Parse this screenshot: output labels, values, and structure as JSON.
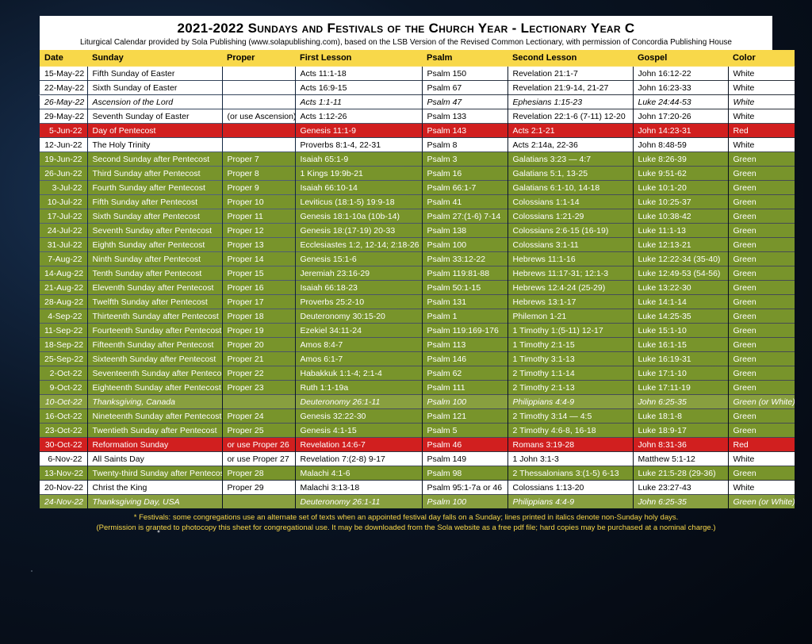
{
  "title": "2021-2022 Sundays and Festivals of the Church Year - Lectionary Year C",
  "subtitle": "Liturgical Calendar provided by Sola Publishing (www.solapublishing.com), based on the LSB Version of the Revised Common Lectionary, with permission of Concordia Publishing House",
  "columns": [
    "Date",
    "Sunday",
    "Proper",
    "First Lesson",
    "Psalm",
    "Second Lesson",
    "Gospel",
    "Color"
  ],
  "rows": [
    {
      "cls": "white",
      "c": [
        "15-May-22",
        "Fifth Sunday of Easter",
        "",
        "Acts 11:1-18",
        "Psalm 150",
        "Revelation 21:1-7",
        "John 16:12-22",
        "White"
      ]
    },
    {
      "cls": "white",
      "c": [
        "22-May-22",
        "Sixth Sunday of Easter",
        "",
        "Acts 16:9-15",
        "Psalm 67",
        "Revelation 21:9-14, 21-27",
        "John 16:23-33",
        "White"
      ]
    },
    {
      "cls": "white",
      "it": true,
      "c": [
        "26-May-22",
        "Ascension of the Lord",
        "",
        "Acts 1:1-11",
        "Psalm 47",
        "Ephesians 1:15-23",
        "Luke 24:44-53",
        "White"
      ]
    },
    {
      "cls": "white",
      "c": [
        "29-May-22",
        "Seventh Sunday of Easter",
        "(or use Ascension)",
        "Acts 1:12-26",
        "Psalm 133",
        "Revelation 22:1-6 (7-11) 12-20",
        "John 17:20-26",
        "White"
      ]
    },
    {
      "cls": "red",
      "c": [
        "5-Jun-22",
        "Day of Pentecost",
        "",
        "Genesis 11:1-9",
        "Psalm 143",
        "Acts 2:1-21",
        "John 14:23-31",
        "Red"
      ]
    },
    {
      "cls": "white",
      "c": [
        "12-Jun-22",
        "The Holy Trinity",
        "",
        "Proverbs 8:1-4, 22-31",
        "Psalm 8",
        "Acts 2:14a, 22-36",
        "John 8:48-59",
        "White"
      ]
    },
    {
      "cls": "green",
      "c": [
        "19-Jun-22",
        "Second Sunday after Pentecost",
        "Proper 7",
        "Isaiah 65:1-9",
        "Psalm 3",
        "Galatians 3:23 — 4:7",
        "Luke 8:26-39",
        "Green"
      ]
    },
    {
      "cls": "green",
      "c": [
        "26-Jun-22",
        "Third Sunday after Pentecost",
        "Proper 8",
        "1 Kings 19:9b-21",
        "Psalm 16",
        "Galatians 5:1, 13-25",
        "Luke 9:51-62",
        "Green"
      ]
    },
    {
      "cls": "green",
      "c": [
        "3-Jul-22",
        "Fourth Sunday after Pentecost",
        "Proper 9",
        "Isaiah 66:10-14",
        "Psalm 66:1-7",
        "Galatians 6:1-10, 14-18",
        "Luke 10:1-20",
        "Green"
      ]
    },
    {
      "cls": "green",
      "c": [
        "10-Jul-22",
        "Fifth Sunday after Pentecost",
        "Proper 10",
        "Leviticus (18:1-5) 19:9-18",
        "Psalm 41",
        "Colossians 1:1-14",
        "Luke 10:25-37",
        "Green"
      ]
    },
    {
      "cls": "green",
      "c": [
        "17-Jul-22",
        "Sixth Sunday after Pentecost",
        "Proper 11",
        "Genesis 18:1-10a (10b-14)",
        "Psalm 27:(1-6) 7-14",
        "Colossians 1:21-29",
        "Luke 10:38-42",
        "Green"
      ]
    },
    {
      "cls": "green",
      "c": [
        "24-Jul-22",
        "Seventh Sunday after Pentecost",
        "Proper 12",
        "Genesis 18:(17-19) 20-33",
        "Psalm 138",
        "Colossians 2:6-15 (16-19)",
        "Luke 11:1-13",
        "Green"
      ]
    },
    {
      "cls": "green",
      "c": [
        "31-Jul-22",
        "Eighth Sunday after Pentecost",
        "Proper 13",
        "Ecclesiastes 1:2, 12-14; 2:18-26",
        "Psalm 100",
        "Colossians 3:1-11",
        "Luke 12:13-21",
        "Green"
      ]
    },
    {
      "cls": "green",
      "c": [
        "7-Aug-22",
        "Ninth Sunday after Pentecost",
        "Proper 14",
        "Genesis 15:1-6",
        "Psalm 33:12-22",
        "Hebrews 11:1-16",
        "Luke 12:22-34 (35-40)",
        "Green"
      ]
    },
    {
      "cls": "green",
      "c": [
        "14-Aug-22",
        "Tenth Sunday after Pentecost",
        "Proper 15",
        "Jeremiah 23:16-29",
        "Psalm 119:81-88",
        "Hebrews 11:17-31; 12:1-3",
        "Luke 12:49-53 (54-56)",
        "Green"
      ]
    },
    {
      "cls": "green",
      "c": [
        "21-Aug-22",
        "Eleventh Sunday after Pentecost",
        "Proper 16",
        "Isaiah 66:18-23",
        "Psalm 50:1-15",
        "Hebrews 12:4-24 (25-29)",
        "Luke 13:22-30",
        "Green"
      ]
    },
    {
      "cls": "green",
      "c": [
        "28-Aug-22",
        "Twelfth Sunday after Pentecost",
        "Proper 17",
        "Proverbs 25:2-10",
        "Psalm 131",
        "Hebrews 13:1-17",
        "Luke 14:1-14",
        "Green"
      ]
    },
    {
      "cls": "green",
      "c": [
        "4-Sep-22",
        "Thirteenth Sunday after Pentecost",
        "Proper 18",
        "Deuteronomy 30:15-20",
        "Psalm 1",
        "Philemon 1-21",
        "Luke 14:25-35",
        "Green"
      ]
    },
    {
      "cls": "green",
      "c": [
        "11-Sep-22",
        "Fourteenth Sunday after Pentecost",
        "Proper 19",
        "Ezekiel 34:11-24",
        "Psalm 119:169-176",
        "1 Timothy 1:(5-11) 12-17",
        "Luke 15:1-10",
        "Green"
      ]
    },
    {
      "cls": "green",
      "c": [
        "18-Sep-22",
        "Fifteenth Sunday after Pentecost",
        "Proper 20",
        "Amos 8:4-7",
        "Psalm 113",
        "1 Timothy 2:1-15",
        "Luke 16:1-15",
        "Green"
      ]
    },
    {
      "cls": "green",
      "c": [
        "25-Sep-22",
        "Sixteenth Sunday after Pentecost",
        "Proper 21",
        "Amos 6:1-7",
        "Psalm 146",
        "1 Timothy 3:1-13",
        "Luke 16:19-31",
        "Green"
      ]
    },
    {
      "cls": "green",
      "c": [
        "2-Oct-22",
        "Seventeenth Sunday after Pentecost",
        "Proper 22",
        "Habakkuk 1:1-4; 2:1-4",
        "Psalm 62",
        "2 Timothy 1:1-14",
        "Luke 17:1-10",
        "Green"
      ]
    },
    {
      "cls": "green",
      "c": [
        "9-Oct-22",
        "Eighteenth Sunday after Pentecost",
        "Proper 23",
        "Ruth 1:1-19a",
        "Psalm 111",
        "2 Timothy 2:1-13",
        "Luke 17:11-19",
        "Green"
      ]
    },
    {
      "cls": "green2",
      "c": [
        "10-Oct-22",
        "Thanksgiving, Canada",
        "",
        "Deuteronomy 26:1-11",
        "Psalm 100",
        "Philippians 4:4-9",
        "John 6:25-35",
        "Green (or White)"
      ]
    },
    {
      "cls": "green",
      "c": [
        "16-Oct-22",
        "Nineteenth Sunday after Pentecost",
        "Proper 24",
        "Genesis 32:22-30",
        "Psalm 121",
        "2 Timothy 3:14 — 4:5",
        "Luke 18:1-8",
        "Green"
      ]
    },
    {
      "cls": "green",
      "c": [
        "23-Oct-22",
        "Twentieth Sunday after Pentecost",
        "Proper 25",
        "Genesis 4:1-15",
        "Psalm 5",
        "2 Timothy 4:6-8, 16-18",
        "Luke 18:9-17",
        "Green"
      ]
    },
    {
      "cls": "red",
      "c": [
        "30-Oct-22",
        "Reformation Sunday",
        "or use Proper 26",
        "Revelation 14:6-7",
        "Psalm 46",
        "Romans 3:19-28",
        "John 8:31-36",
        "Red"
      ]
    },
    {
      "cls": "white",
      "c": [
        "6-Nov-22",
        "All Saints Day",
        "or use Proper 27",
        "Revelation 7:(2-8) 9-17",
        "Psalm 149",
        "1 John 3:1-3",
        "Matthew 5:1-12",
        "White"
      ]
    },
    {
      "cls": "green",
      "c": [
        "13-Nov-22",
        "Twenty-third Sunday after Pentecost",
        "Proper 28",
        "Malachi 4:1-6",
        "Psalm 98",
        "2 Thessalonians 3:(1-5) 6-13",
        "Luke 21:5-28 (29-36)",
        "Green"
      ]
    },
    {
      "cls": "white",
      "c": [
        "20-Nov-22",
        "Christ the King",
        "Proper 29",
        "Malachi 3:13-18",
        "Psalm 95:1-7a or 46",
        "Colossians 1:13-20",
        "Luke 23:27-43",
        "White"
      ]
    },
    {
      "cls": "green2",
      "c": [
        "24-Nov-22",
        "Thanksgiving Day, USA",
        "",
        "Deuteronomy 26:1-11",
        "Psalm 100",
        "Philippians 4:4-9",
        "John 6:25-35",
        "Green (or White)"
      ]
    }
  ],
  "footer1": "* Festivals: some congregations use an alternate set of texts when an appointed festival day falls on a Sunday; lines printed in italics denote non-Sunday holy days.",
  "footer2": "(Permission is granted to photocopy this sheet for congregational use. It may be downloaded from the Sola website as a free pdf file; hard copies may be purchased at a nominal charge.)"
}
